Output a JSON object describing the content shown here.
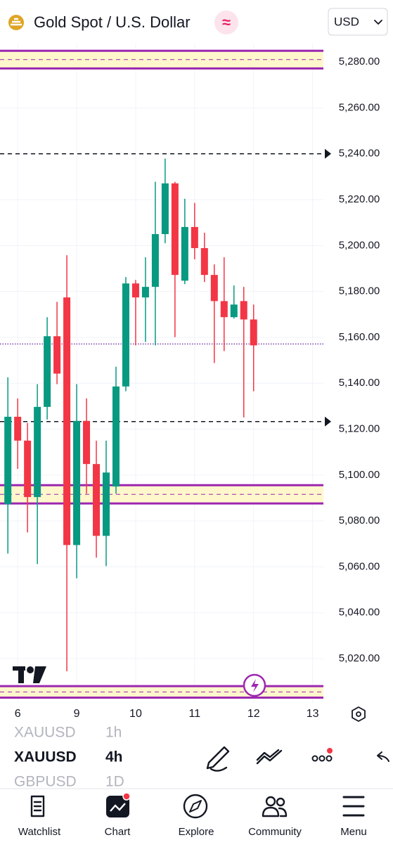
{
  "header": {
    "title": "Gold Spot / U.S. Dollar",
    "badge": "≈",
    "currency": "USD"
  },
  "chart_data": {
    "type": "candlestick",
    "x": [
      0,
      1,
      2,
      3,
      4,
      5,
      6,
      7,
      8,
      9,
      10,
      11,
      12,
      13,
      14,
      15,
      16,
      17,
      18,
      19,
      20,
      21,
      22,
      23,
      24,
      25
    ],
    "open": [
      5087.3,
      5125.4,
      5115,
      5090.4,
      5129.7,
      5160.5,
      5177.4,
      5069.5,
      5123.6,
      5104.8,
      5073.5,
      5095,
      5138.6,
      5183.5,
      5177.4,
      5182,
      5205,
      5227.1,
      5184.7,
      5208.1,
      5198.9,
      5187.2,
      5175.8,
      5168.8,
      5175.8,
      5167.8
    ],
    "high": [
      5142.6,
      5133.4,
      5122.7,
      5139.6,
      5168.8,
      5175.5,
      5195.8,
      5139.6,
      5133.4,
      5115,
      5115,
      5147.2,
      5186.3,
      5185,
      5194.9,
      5227.8,
      5237.9,
      5227.8,
      5220.4,
      5218.6,
      5205.6,
      5191.8,
      5194.9,
      5182.6,
      5182,
      5174.3
    ],
    "low": [
      5065.8,
      5102.7,
      5075,
      5061.2,
      5124.2,
      5139.6,
      5014.5,
      5055,
      5091.9,
      5064,
      5060.3,
      5091.9,
      5136.5,
      5156.5,
      5158,
      5156.5,
      5201,
      5160.1,
      5183.2,
      5194,
      5184.1,
      5148.8,
      5154,
      5168.2,
      5125.1,
      5136.5
    ],
    "close": [
      5125.4,
      5115,
      5090.4,
      5129.7,
      5160.5,
      5144.2,
      5069.5,
      5123.6,
      5104.8,
      5073.5,
      5101.1,
      5138.6,
      5183.5,
      5177.4,
      5182,
      5205,
      5227.1,
      5187.2,
      5208.1,
      5198.9,
      5187.2,
      5175.8,
      5168.8,
      5174.3,
      5167.8,
      5156.5
    ],
    "up_color": "#089981",
    "down_color": "#f23645",
    "xlim": [
      -0.8,
      32.1
    ],
    "ylim": [
      5000.7,
      5291.7
    ],
    "xticks": [
      {
        "value": 1,
        "label": "6"
      },
      {
        "value": 7,
        "label": "9"
      },
      {
        "value": 13,
        "label": "10"
      },
      {
        "value": 19,
        "label": "11"
      },
      {
        "value": 25,
        "label": "12"
      },
      {
        "value": 31,
        "label": "13"
      }
    ],
    "yticks": [
      {
        "value": 5020,
        "label": "5,020.00"
      },
      {
        "value": 5040,
        "label": "5,040.00"
      },
      {
        "value": 5060,
        "label": "5,060.00"
      },
      {
        "value": 5080,
        "label": "5,080.00"
      },
      {
        "value": 5100,
        "label": "5,100.00"
      },
      {
        "value": 5120,
        "label": "5,120.00"
      },
      {
        "value": 5140,
        "label": "5,140.00"
      },
      {
        "value": 5160,
        "label": "5,160.00"
      },
      {
        "value": 5180,
        "label": "5,180.00"
      },
      {
        "value": 5200,
        "label": "5,200.00"
      },
      {
        "value": 5220,
        "label": "5,220.00"
      },
      {
        "value": 5240,
        "label": "5,240.00"
      },
      {
        "value": 5260,
        "label": "5,260.00"
      },
      {
        "value": 5280,
        "label": "5,280.00"
      }
    ],
    "grid": true,
    "levels": [
      5240,
      5123.3
    ],
    "last_price": 5157.1,
    "zones": [
      [
        5284.9,
        5277.2
      ],
      [
        5095.6,
        5087.6
      ],
      [
        5008,
        5003
      ]
    ],
    "zone_color": "#9c27b0"
  },
  "symbols": [
    {
      "symbol": "XAUUSD",
      "interval": "1h"
    },
    {
      "symbol": "XAUUSD",
      "interval": "4h"
    },
    {
      "symbol": "GBPUSD",
      "interval": "1D"
    }
  ],
  "nav": [
    "Watchlist",
    "Chart",
    "Explore",
    "Community",
    "Menu"
  ]
}
